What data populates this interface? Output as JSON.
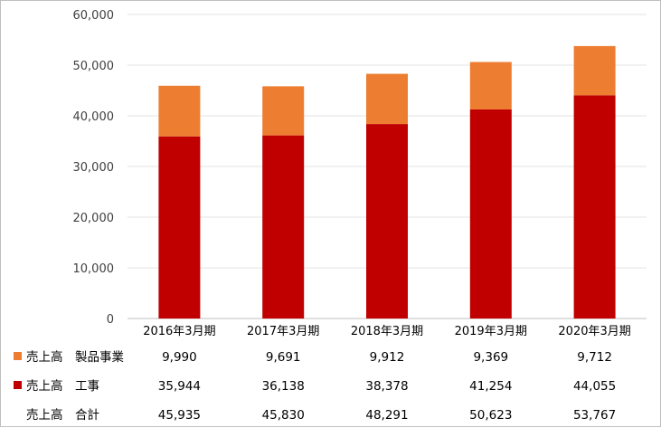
{
  "chart_data": {
    "type": "bar",
    "stacked": true,
    "categories": [
      "2016年3月期",
      "2017年3月期",
      "2018年3月期",
      "2019年3月期",
      "2020年3月期"
    ],
    "ylim": [
      0,
      60000
    ],
    "yticks": [
      "0",
      "10,000",
      "20,000",
      "30,000",
      "40,000",
      "50,000",
      "60,000"
    ],
    "grid": true,
    "legend": "data-table-left",
    "series": [
      {
        "name": "工事",
        "table_label": "売上高　工事",
        "values": [
          35944,
          36138,
          38378,
          41254,
          44055
        ],
        "labels": [
          "35,944",
          "36,138",
          "38,378",
          "41,254",
          "44,055"
        ],
        "color": "#c00000"
      },
      {
        "name": "製品事業",
        "table_label": "売上高　製品事業",
        "values": [
          9990,
          9691,
          9912,
          9369,
          9712
        ],
        "labels": [
          "9,990",
          "9,691",
          "9,912",
          "9,369",
          "9,712"
        ],
        "color": "#ed7d31"
      }
    ],
    "table_rows": [
      {
        "label": "売上高　製品事業",
        "values": [
          "9,990",
          "9,691",
          "9,912",
          "9,369",
          "9,712"
        ],
        "color": "#ed7d31"
      },
      {
        "label": "売上高　工事",
        "values": [
          "35,944",
          "36,138",
          "38,378",
          "41,254",
          "44,055"
        ],
        "color": "#c00000"
      },
      {
        "label": "売上高　合計",
        "values": [
          "45,935",
          "45,830",
          "48,291",
          "50,623",
          "53,767"
        ],
        "color": null
      }
    ]
  }
}
